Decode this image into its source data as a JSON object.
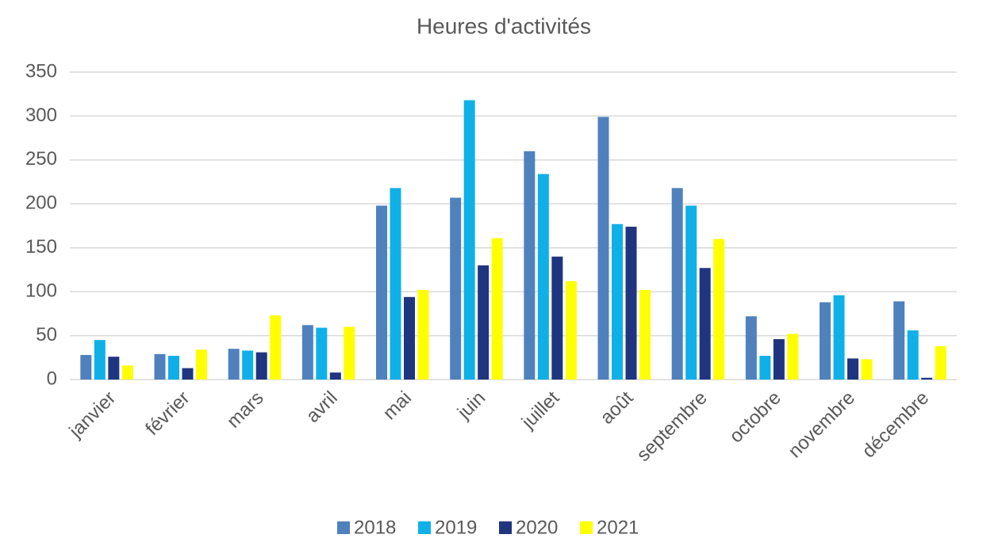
{
  "chart_data": {
    "type": "bar",
    "title": "Heures d'activités",
    "categories": [
      "janvier",
      "février",
      "mars",
      "avril",
      "mai",
      "juin",
      "juillet",
      "août",
      "septembre",
      "octobre",
      "novembre",
      "décembre"
    ],
    "series": [
      {
        "name": "2018",
        "color": "#4f81bd",
        "values": [
          28,
          29,
          35,
          62,
          198,
          207,
          260,
          299,
          218,
          72,
          88,
          89
        ]
      },
      {
        "name": "2019",
        "color": "#0fb0e8",
        "values": [
          45,
          27,
          33,
          59,
          218,
          318,
          234,
          177,
          198,
          27,
          96,
          56
        ]
      },
      {
        "name": "2020",
        "color": "#1f3580",
        "values": [
          26,
          13,
          31,
          8,
          94,
          130,
          140,
          174,
          127,
          46,
          24,
          2
        ]
      },
      {
        "name": "2021",
        "color": "#ffff00",
        "values": [
          16,
          34,
          73,
          60,
          102,
          161,
          112,
          102,
          160,
          52,
          23,
          38
        ]
      }
    ],
    "ylim": [
      0,
      350
    ],
    "yticks": [
      0,
      50,
      100,
      150,
      200,
      250,
      300,
      350
    ],
    "grid": true,
    "legend": "bottom"
  }
}
